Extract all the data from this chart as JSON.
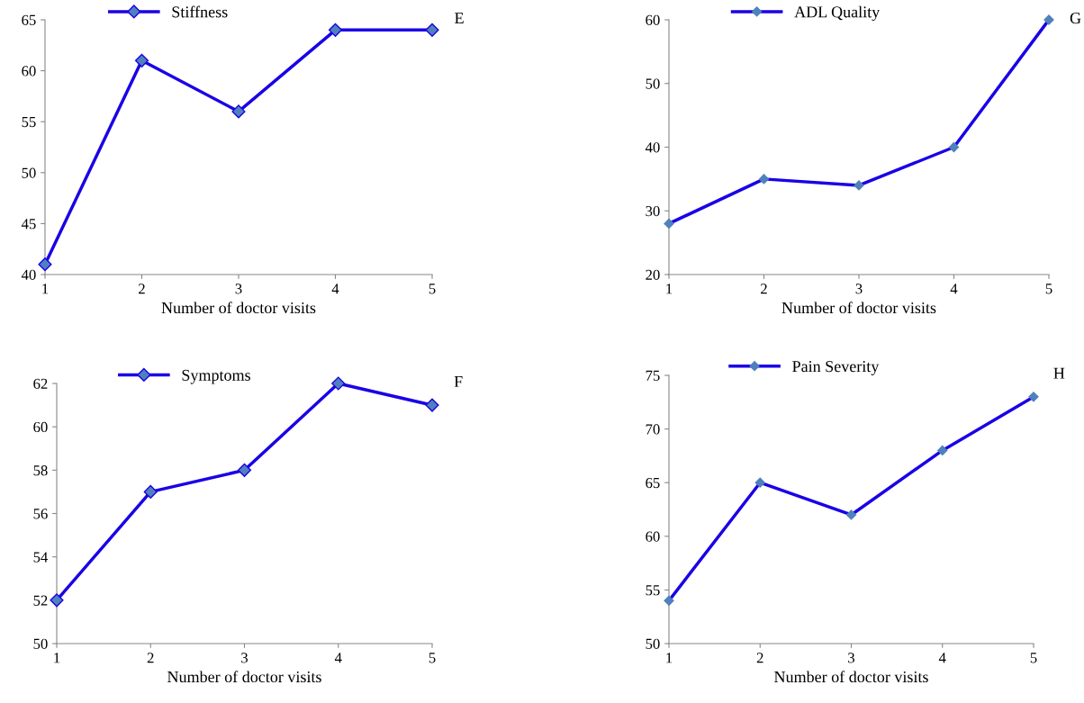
{
  "chart_data": [
    {
      "type": "line",
      "xlabel": "Number of doctor visits",
      "x": [
        1,
        2,
        3,
        4,
        5
      ],
      "xlim": [
        1,
        5
      ],
      "xticks": [
        1,
        2,
        3,
        4,
        5
      ],
      "ylim": [
        40,
        65
      ],
      "yticks": [
        40,
        45,
        50,
        55,
        60,
        65
      ],
      "marker": "diamond",
      "legend": "top left",
      "annotations": [
        "E"
      ],
      "series": [
        {
          "name": "Stiffness",
          "color": "#1a00e6",
          "values": [
            41,
            61,
            56,
            64,
            64
          ]
        }
      ]
    },
    {
      "type": "line",
      "xlabel": "Number of doctor visits",
      "x": [
        1,
        2,
        3,
        4,
        5
      ],
      "xlim": [
        1,
        5
      ],
      "xticks": [
        1,
        2,
        3,
        4,
        5
      ],
      "ylim": [
        20,
        60
      ],
      "yticks": [
        20,
        30,
        40,
        50,
        60
      ],
      "marker": "diamond",
      "legend": "top left",
      "annotations": [
        "G"
      ],
      "series": [
        {
          "name": "ADL Quality",
          "color": "#1a00e6",
          "values": [
            28,
            35,
            34,
            40,
            60
          ]
        }
      ]
    },
    {
      "type": "line",
      "xlabel": "Number of doctor visits",
      "x": [
        1,
        2,
        3,
        4,
        5
      ],
      "xlim": [
        1,
        5
      ],
      "xticks": [
        1,
        2,
        3,
        4,
        5
      ],
      "ylim": [
        50,
        62
      ],
      "yticks": [
        50,
        52,
        54,
        56,
        58,
        60,
        62
      ],
      "marker": "diamond",
      "legend": "top left",
      "annotations": [
        "F"
      ],
      "series": [
        {
          "name": "Symptoms",
          "color": "#1a00e6",
          "values": [
            52,
            57,
            58,
            62,
            61
          ]
        }
      ]
    },
    {
      "type": "line",
      "xlabel": "Number of doctor visits",
      "x": [
        1,
        2,
        3,
        4,
        5
      ],
      "xlim": [
        1,
        5
      ],
      "xticks": [
        1,
        2,
        3,
        4,
        5
      ],
      "ylim": [
        50,
        75
      ],
      "yticks": [
        50,
        55,
        60,
        65,
        70,
        75
      ],
      "marker": "diamond",
      "legend": "top left",
      "annotations": [
        "H"
      ],
      "series": [
        {
          "name": "Pain Severity",
          "color": "#1a00e6",
          "values": [
            54,
            65,
            62,
            68,
            73
          ]
        }
      ]
    }
  ]
}
